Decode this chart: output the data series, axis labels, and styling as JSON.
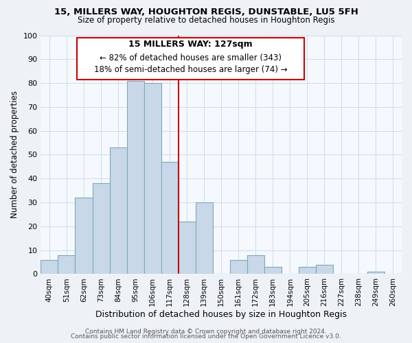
{
  "title": "15, MILLERS WAY, HOUGHTON REGIS, DUNSTABLE, LU5 5FH",
  "subtitle": "Size of property relative to detached houses in Houghton Regis",
  "xlabel": "Distribution of detached houses by size in Houghton Regis",
  "ylabel": "Number of detached properties",
  "bin_labels": [
    "40sqm",
    "51sqm",
    "62sqm",
    "73sqm",
    "84sqm",
    "95sqm",
    "106sqm",
    "117sqm",
    "128sqm",
    "139sqm",
    "150sqm",
    "161sqm",
    "172sqm",
    "183sqm",
    "194sqm",
    "205sqm",
    "216sqm",
    "227sqm",
    "238sqm",
    "249sqm",
    "260sqm"
  ],
  "bar_heights": [
    6,
    8,
    32,
    38,
    53,
    81,
    80,
    47,
    22,
    30,
    0,
    6,
    8,
    3,
    0,
    3,
    4,
    0,
    0,
    1,
    0
  ],
  "bar_color": "#c8d8e8",
  "bar_edge_color": "#7aaabb",
  "ylim": [
    0,
    100
  ],
  "yticks": [
    0,
    10,
    20,
    30,
    40,
    50,
    60,
    70,
    80,
    90,
    100
  ],
  "vline_x_index": 8,
  "vline_color": "#cc0000",
  "annotation_title": "15 MILLERS WAY: 127sqm",
  "annotation_line1": "← 82% of detached houses are smaller (343)",
  "annotation_line2": "18% of semi-detached houses are larger (74) →",
  "annotation_box_facecolor": "#ffffff",
  "annotation_box_edgecolor": "#cc0000",
  "footer_line1": "Contains HM Land Registry data © Crown copyright and database right 2024.",
  "footer_line2": "Contains public sector information licensed under the Open Government Licence v3.0.",
  "background_color": "#eef2f7",
  "plot_background_color": "#f5f8fc"
}
